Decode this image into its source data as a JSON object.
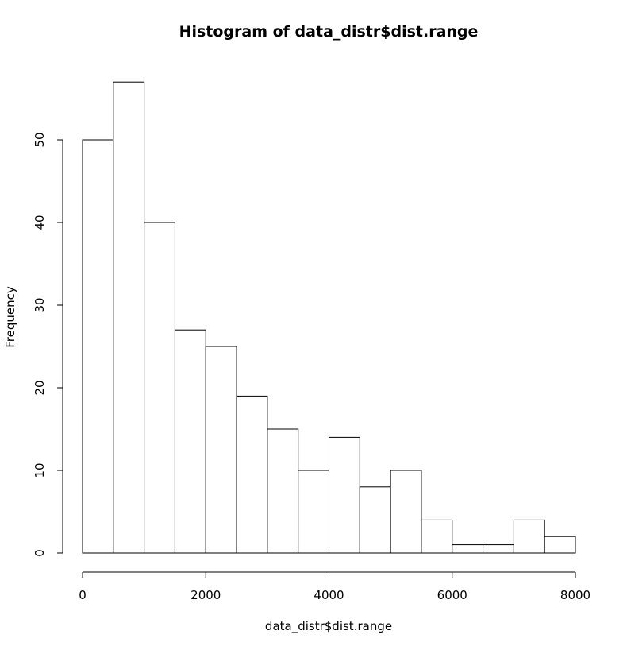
{
  "chart_data": {
    "type": "bar",
    "title": "Histogram of data_distr$dist.range",
    "xlabel": "data_distr$dist.range",
    "ylabel": "Frequency",
    "xlim": [
      0,
      8000
    ],
    "ylim": [
      0,
      57
    ],
    "x_ticks": [
      0,
      2000,
      4000,
      6000,
      8000
    ],
    "y_ticks": [
      0,
      10,
      20,
      30,
      40,
      50
    ],
    "bin_edges": [
      0,
      500,
      1000,
      1500,
      2000,
      2500,
      3000,
      3500,
      4000,
      4500,
      5000,
      5500,
      6000,
      6500,
      7000,
      7500,
      8000
    ],
    "values": [
      50,
      57,
      40,
      27,
      25,
      19,
      15,
      10,
      14,
      8,
      10,
      4,
      1,
      1,
      4,
      2
    ],
    "grid": false,
    "legend": "none"
  }
}
